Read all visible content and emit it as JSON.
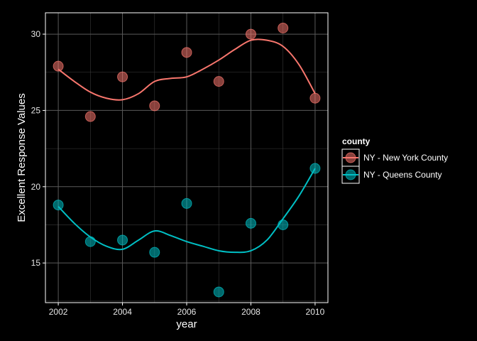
{
  "chart_data": {
    "type": "scatter",
    "xlabel": "year",
    "ylabel": "Excellent Response Values",
    "xlim": [
      2001.6,
      2010.4
    ],
    "ylim": [
      12.4,
      31.4
    ],
    "x_ticks": [
      2002,
      2004,
      2006,
      2008,
      2010
    ],
    "x_tick_labels": [
      "2002",
      "2004",
      "2006",
      "2008",
      "2010"
    ],
    "y_ticks": [
      15,
      20,
      25,
      30
    ],
    "y_tick_labels": [
      "15",
      "20",
      "25",
      "30"
    ],
    "grid": true,
    "legend": {
      "title": "county",
      "placement": "right"
    },
    "series": [
      {
        "name": "NY - New York County",
        "color": "#f8766d",
        "x": [
          2002,
          2003,
          2004,
          2005,
          2006,
          2007,
          2008,
          2009,
          2010
        ],
        "y": [
          27.9,
          24.6,
          27.2,
          25.3,
          28.8,
          26.9,
          30.0,
          30.4,
          25.8
        ],
        "smooth_x": [
          2002,
          2002.5,
          2003,
          2003.5,
          2004,
          2004.5,
          2005,
          2005.5,
          2006,
          2006.5,
          2007,
          2007.5,
          2008,
          2008.5,
          2009,
          2009.5,
          2010
        ],
        "smooth_y": [
          27.7,
          26.9,
          26.2,
          25.8,
          25.7,
          26.1,
          26.9,
          27.1,
          27.2,
          27.7,
          28.3,
          29.0,
          29.6,
          29.6,
          29.2,
          28.0,
          26.1
        ]
      },
      {
        "name": "NY - Queens County",
        "color": "#00bfc4",
        "x": [
          2002,
          2003,
          2004,
          2005,
          2006,
          2007,
          2008,
          2009,
          2010
        ],
        "y": [
          18.8,
          16.4,
          16.5,
          15.7,
          18.9,
          13.1,
          17.6,
          17.5,
          21.2
        ],
        "smooth_x": [
          2002,
          2002.5,
          2003,
          2003.5,
          2004,
          2004.5,
          2005,
          2005.5,
          2006,
          2006.5,
          2007,
          2007.5,
          2008,
          2008.5,
          2009,
          2009.5,
          2010
        ],
        "smooth_y": [
          18.7,
          17.6,
          16.7,
          16.1,
          15.9,
          16.5,
          17.1,
          16.8,
          16.4,
          16.1,
          15.8,
          15.7,
          15.8,
          16.5,
          17.9,
          19.4,
          21.2
        ]
      }
    ]
  }
}
